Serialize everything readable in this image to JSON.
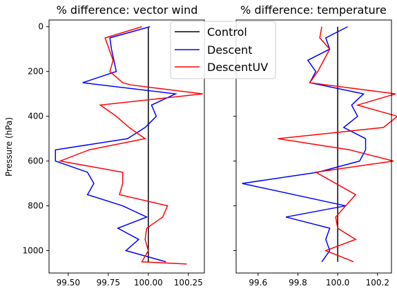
{
  "chart_data": [
    {
      "type": "line",
      "title": "% difference: vector wind",
      "ylabel": "Pressure (hPa)",
      "xlabel": "",
      "xlim": [
        99.38,
        100.35
      ],
      "ylim": [
        1100,
        -30
      ],
      "y_inverted": true,
      "xticks": [
        99.5,
        99.75,
        100.0,
        100.25
      ],
      "xtick_labels": [
        "99.50",
        "99.75",
        "100.00",
        "100.25"
      ],
      "yticks": [
        0,
        200,
        400,
        600,
        800,
        1000
      ],
      "ytick_labels": [
        "0",
        "200",
        "400",
        "600",
        "800",
        "1000"
      ],
      "series": [
        {
          "name": "Control",
          "color": "#000000",
          "x": [
            100.0,
            100.0
          ],
          "y": [
            0,
            1050
          ]
        },
        {
          "name": "Descent",
          "color": "#0000ff",
          "x": [
            100.01,
            99.76,
            99.77,
            99.8,
            99.59,
            100.17,
            100.02,
            100.05,
            99.98,
            99.87,
            99.42,
            99.42,
            99.62,
            99.66,
            99.62,
            99.84,
            99.99,
            99.81,
            99.94,
            99.86,
            100.11
          ],
          "y": [
            0,
            50,
            100,
            200,
            250,
            300,
            350,
            400,
            450,
            500,
            550,
            600,
            650,
            700,
            750,
            800,
            850,
            900,
            950,
            1000,
            1050
          ]
        },
        {
          "name": "DescentUV",
          "color": "#ff0000",
          "x": [
            99.96,
            99.73,
            99.78,
            99.76,
            99.84,
            99.89,
            100.34,
            99.7,
            99.8,
            99.88,
            99.98,
            99.63,
            99.45,
            99.84,
            99.84,
            99.82,
            100.12,
            100.09,
            99.99,
            99.98,
            100.0,
            99.96,
            100.24
          ],
          "y": [
            0,
            50,
            150,
            200,
            250,
            260,
            300,
            350,
            400,
            450,
            500,
            550,
            600,
            650,
            700,
            750,
            800,
            850,
            900,
            950,
            1000,
            1050,
            1060
          ]
        }
      ],
      "grid": false
    },
    {
      "type": "line",
      "title": "% difference: temperature",
      "ylabel": "",
      "xlabel": "",
      "xlim": [
        99.49,
        100.27
      ],
      "ylim": [
        1100,
        -30
      ],
      "y_inverted": true,
      "xticks": [
        99.6,
        99.8,
        100.0,
        100.2
      ],
      "xtick_labels": [
        "99.6",
        "99.8",
        "100.0",
        "100.2"
      ],
      "series": [
        {
          "name": "Control",
          "color": "#000000",
          "x": [
            100.0,
            100.0
          ],
          "y": [
            0,
            1050
          ]
        },
        {
          "name": "Descent",
          "color": "#0000ff",
          "x": [
            100.05,
            99.94,
            99.96,
            99.85,
            99.89,
            99.86,
            100.13,
            100.07,
            100.1,
            100.03,
            100.14,
            100.14,
            100.11,
            99.9,
            99.52,
            100.04,
            99.74,
            99.96,
            99.94,
            99.96,
            99.92
          ],
          "y": [
            0,
            50,
            100,
            150,
            200,
            250,
            300,
            350,
            400,
            450,
            500,
            550,
            600,
            650,
            700,
            800,
            850,
            900,
            950,
            1000,
            1050
          ]
        },
        {
          "name": "DescentUV",
          "color": "#ff0000",
          "x": [
            99.92,
            99.91,
            99.96,
            99.93,
            99.9,
            99.86,
            100.29,
            100.1,
            100.3,
            100.23,
            99.7,
            100.06,
            100.28,
            99.89,
            100.09,
            99.99,
            100.0,
            100.09,
            99.94,
            100.08
          ],
          "y": [
            0,
            50,
            100,
            150,
            200,
            250,
            300,
            350,
            400,
            450,
            500,
            550,
            600,
            650,
            750,
            850,
            900,
            950,
            1000,
            1050
          ]
        }
      ],
      "grid": false
    }
  ],
  "legend": {
    "placement": "top-center",
    "entries": [
      {
        "label": "Control",
        "color": "#000000"
      },
      {
        "label": "Descent",
        "color": "#0000ff"
      },
      {
        "label": "DescentUV",
        "color": "#ff0000"
      }
    ]
  }
}
